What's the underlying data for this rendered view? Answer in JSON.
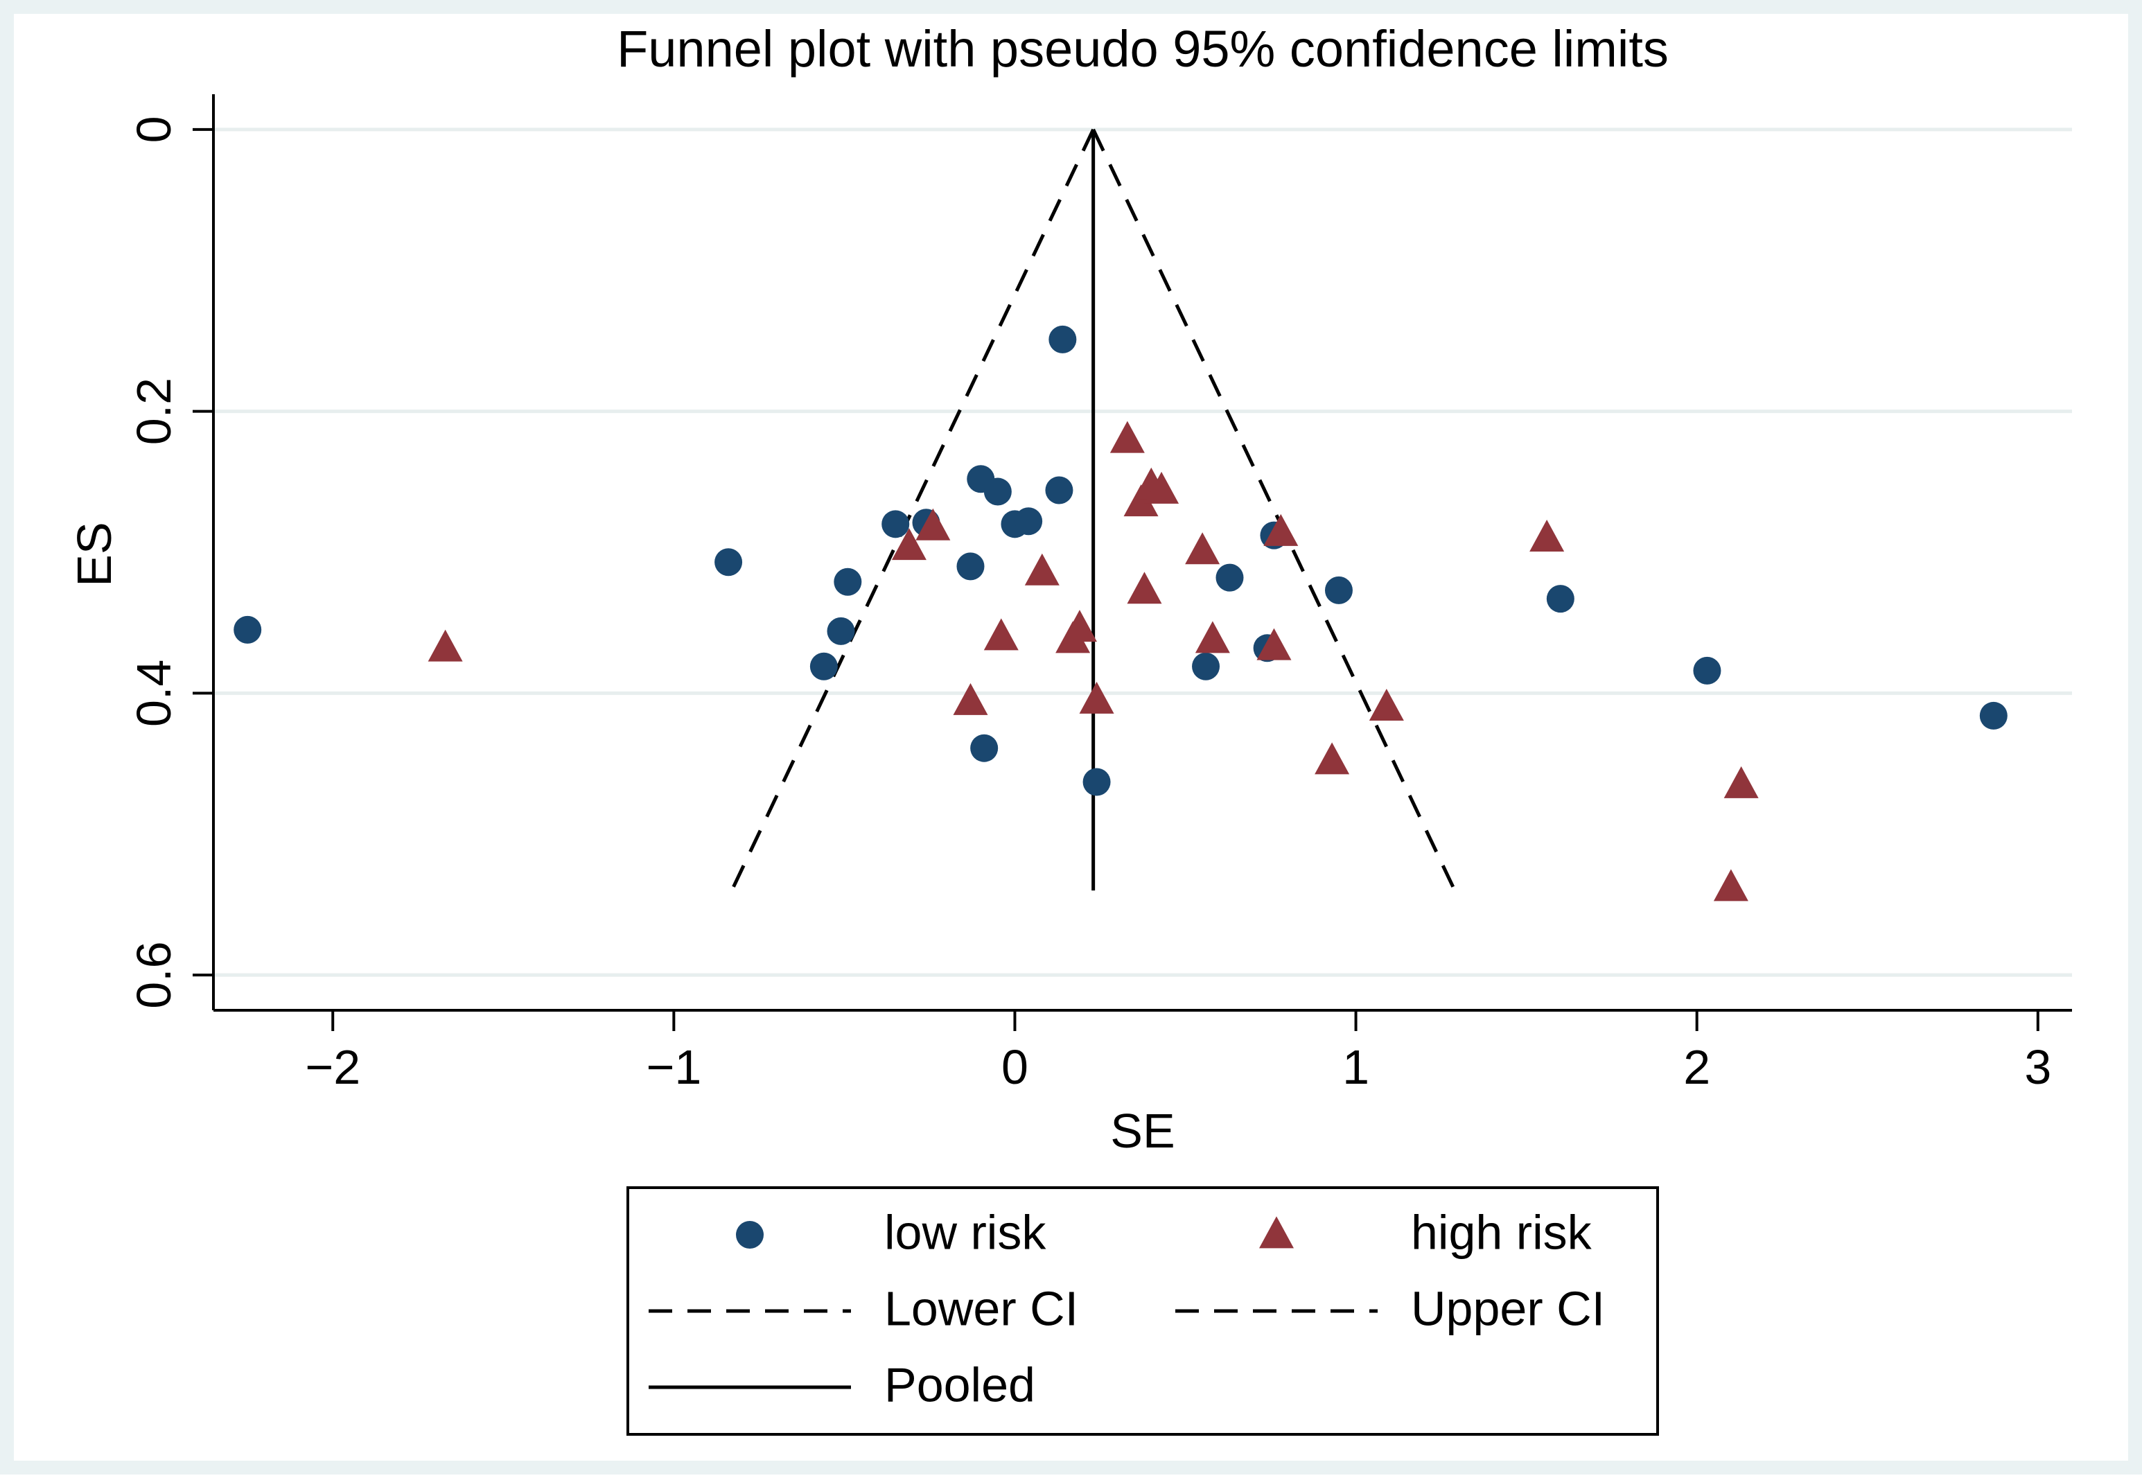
{
  "chart_data": {
    "type": "scatter",
    "title": "Funnel plot with pseudo 95% confidence limits",
    "xlabel": "SE",
    "ylabel": "ES",
    "xlim": [
      -2.35,
      3.1
    ],
    "ylim": [
      -0.025,
      0.625
    ],
    "y_reversed": true,
    "xticks": [
      -2,
      -1,
      0,
      1,
      2,
      3
    ],
    "xtick_labels": [
      "−2",
      "−1",
      "0",
      "1",
      "2",
      "3"
    ],
    "yticks": [
      0,
      0.2,
      0.4,
      0.6
    ],
    "ytick_labels": [
      "0",
      "0.2",
      "0.4",
      "0.6"
    ],
    "grid": true,
    "legend_position": "bottom",
    "colors": {
      "low_risk": "#1a476f",
      "high_risk": "#90353b",
      "grid": "#e7eeee",
      "frame_bg": "#eaf2f3"
    },
    "series": [
      {
        "name": "low risk",
        "marker": "circle",
        "points": [
          {
            "x": -2.25,
            "y": 0.355
          },
          {
            "x": -0.84,
            "y": 0.307
          },
          {
            "x": -0.56,
            "y": 0.381
          },
          {
            "x": -0.51,
            "y": 0.356
          },
          {
            "x": -0.49,
            "y": 0.321
          },
          {
            "x": -0.35,
            "y": 0.28
          },
          {
            "x": -0.26,
            "y": 0.279
          },
          {
            "x": -0.13,
            "y": 0.31
          },
          {
            "x": -0.1,
            "y": 0.248
          },
          {
            "x": -0.09,
            "y": 0.439
          },
          {
            "x": -0.05,
            "y": 0.257
          },
          {
            "x": 0.0,
            "y": 0.28
          },
          {
            "x": 0.04,
            "y": 0.278
          },
          {
            "x": 0.13,
            "y": 0.256
          },
          {
            "x": 0.14,
            "y": 0.149
          },
          {
            "x": 0.24,
            "y": 0.463
          },
          {
            "x": 0.56,
            "y": 0.381
          },
          {
            "x": 0.63,
            "y": 0.318
          },
          {
            "x": 0.74,
            "y": 0.368
          },
          {
            "x": 0.76,
            "y": 0.288
          },
          {
            "x": 0.95,
            "y": 0.327
          },
          {
            "x": 1.6,
            "y": 0.333
          },
          {
            "x": 2.03,
            "y": 0.384
          },
          {
            "x": 2.87,
            "y": 0.416
          }
        ]
      },
      {
        "name": "high risk",
        "marker": "triangle",
        "points": [
          {
            "x": -1.67,
            "y": 0.368
          },
          {
            "x": -0.31,
            "y": 0.296
          },
          {
            "x": -0.24,
            "y": 0.282
          },
          {
            "x": -0.13,
            "y": 0.406
          },
          {
            "x": -0.04,
            "y": 0.36
          },
          {
            "x": 0.08,
            "y": 0.314
          },
          {
            "x": 0.17,
            "y": 0.362
          },
          {
            "x": 0.19,
            "y": 0.354
          },
          {
            "x": 0.24,
            "y": 0.405
          },
          {
            "x": 0.33,
            "y": 0.22
          },
          {
            "x": 0.37,
            "y": 0.265
          },
          {
            "x": 0.38,
            "y": 0.327
          },
          {
            "x": 0.4,
            "y": 0.253
          },
          {
            "x": 0.43,
            "y": 0.256
          },
          {
            "x": 0.55,
            "y": 0.299
          },
          {
            "x": 0.58,
            "y": 0.362
          },
          {
            "x": 0.76,
            "y": 0.367
          },
          {
            "x": 0.78,
            "y": 0.286
          },
          {
            "x": 0.93,
            "y": 0.448
          },
          {
            "x": 1.09,
            "y": 0.41
          },
          {
            "x": 1.56,
            "y": 0.29
          },
          {
            "x": 2.1,
            "y": 0.538
          },
          {
            "x": 2.13,
            "y": 0.465
          }
        ]
      },
      {
        "name": "Lower CI",
        "marker": "dashed-line",
        "points": [
          {
            "x": 0.23,
            "y": 0.0
          },
          {
            "x": -0.83,
            "y": 0.54
          }
        ]
      },
      {
        "name": "Upper CI",
        "marker": "dashed-line",
        "points": [
          {
            "x": 0.23,
            "y": 0.0
          },
          {
            "x": 1.29,
            "y": 0.54
          }
        ]
      },
      {
        "name": "Pooled",
        "marker": "solid-line",
        "points": [
          {
            "x": 0.23,
            "y": 0.0
          },
          {
            "x": 0.23,
            "y": 0.54
          }
        ]
      }
    ],
    "legend": [
      {
        "label": "low risk",
        "symbol": "circle"
      },
      {
        "label": "high risk",
        "symbol": "triangle"
      },
      {
        "label": "Lower CI",
        "symbol": "dashed-line"
      },
      {
        "label": "Upper CI",
        "symbol": "dashed-line"
      },
      {
        "label": "Pooled",
        "symbol": "solid-line"
      }
    ]
  }
}
